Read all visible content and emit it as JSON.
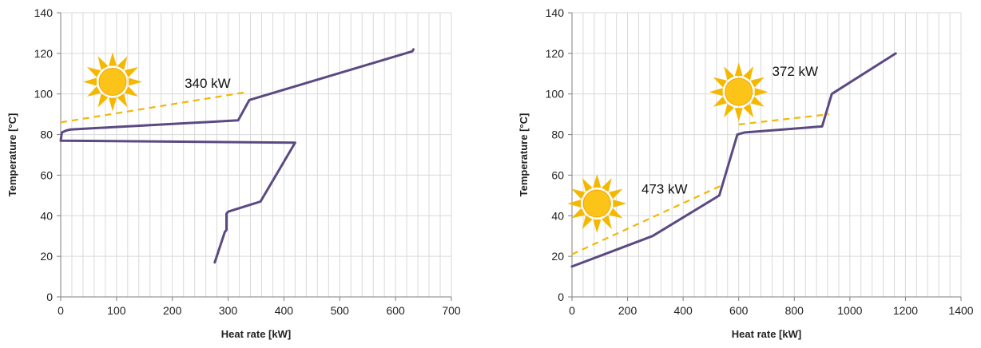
{
  "colors": {
    "curve": "#5b4a82",
    "dash": "#f2b705",
    "sun_fill": "#fcc419",
    "sun_ray": "#f5b800",
    "grid": "#d9d9d9",
    "axis": "#7f7f7f"
  },
  "chart_data": [
    {
      "type": "line",
      "xlabel": "Heat rate [kW]",
      "ylabel": "Temperature [°C]",
      "xlim": [
        0,
        700
      ],
      "ylim": [
        0,
        140
      ],
      "xticks": [
        0,
        100,
        200,
        300,
        400,
        500,
        600,
        700
      ],
      "yticks": [
        0,
        20,
        40,
        60,
        80,
        100,
        120,
        140
      ],
      "grid": "vertical-minor-and-horizontal-major",
      "series": [
        {
          "style": "solid",
          "color": "#5b4a82",
          "x": [
            276,
            294,
            297,
            297,
            300,
            300,
            358,
            420,
            0,
            2,
            10,
            18,
            318,
            338,
            630,
            632
          ],
          "y": [
            17,
            32,
            33,
            41,
            42,
            42,
            47,
            76,
            77,
            81,
            82,
            82.5,
            87,
            97,
            121,
            122
          ]
        },
        {
          "style": "dashed",
          "color": "#f2b705",
          "x": [
            0,
            335
          ],
          "y": [
            86,
            101
          ]
        }
      ],
      "annotations": [
        {
          "text": "340 kW",
          "x": 222,
          "y": 103
        }
      ],
      "suns": [
        {
          "x": 93,
          "y": 106
        }
      ]
    },
    {
      "type": "line",
      "xlabel": "Heat rate [kW]",
      "ylabel": "Temperature [°C]",
      "xlim": [
        0,
        1400
      ],
      "ylim": [
        0,
        140
      ],
      "xticks": [
        0,
        200,
        400,
        600,
        800,
        1000,
        1200,
        1400
      ],
      "yticks": [
        0,
        20,
        40,
        60,
        80,
        100,
        120,
        140
      ],
      "grid": "vertical-minor-and-horizontal-major",
      "series": [
        {
          "style": "solid",
          "color": "#5b4a82",
          "x": [
            0,
            290,
            530,
            595,
            620,
            900,
            935,
            1165
          ],
          "y": [
            15,
            30,
            50,
            80,
            81,
            84,
            100,
            120
          ]
        },
        {
          "style": "dashed",
          "color": "#f2b705",
          "x": [
            0,
            540
          ],
          "y": [
            21,
            55
          ]
        },
        {
          "style": "dashed",
          "color": "#f2b705",
          "x": [
            600,
            925
          ],
          "y": [
            85,
            90
          ]
        }
      ],
      "annotations": [
        {
          "text": "473 kW",
          "x": 250,
          "y": 51
        },
        {
          "text": "372 kW",
          "x": 720,
          "y": 109
        }
      ],
      "suns": [
        {
          "x": 90,
          "y": 46
        },
        {
          "x": 600,
          "y": 101
        }
      ]
    }
  ]
}
